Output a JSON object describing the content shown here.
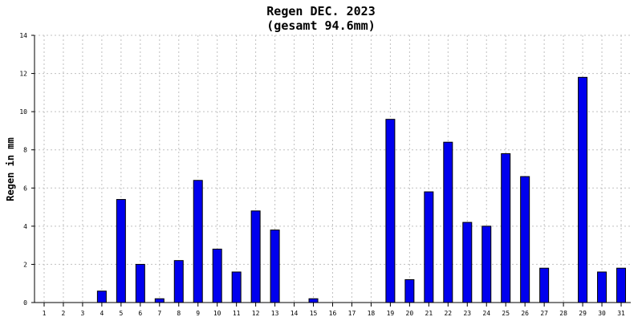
{
  "chart_data": {
    "type": "bar",
    "title": "Regen DEC. 2023",
    "subtitle": "(gesamt 94.6mm)",
    "xlabel": "",
    "ylabel": "Regen in mm",
    "ylim": [
      0,
      14
    ],
    "yticks": [
      0,
      2,
      4,
      6,
      8,
      10,
      12,
      14
    ],
    "grid": true,
    "categories": [
      "1",
      "2",
      "3",
      "4",
      "5",
      "6",
      "7",
      "8",
      "9",
      "10",
      "11",
      "12",
      "13",
      "14",
      "15",
      "16",
      "17",
      "18",
      "19",
      "20",
      "21",
      "22",
      "23",
      "24",
      "25",
      "26",
      "27",
      "28",
      "29",
      "30",
      "31"
    ],
    "values": [
      0,
      0,
      0,
      0.6,
      5.4,
      2.0,
      0.2,
      2.2,
      6.4,
      2.8,
      1.6,
      4.8,
      3.8,
      0,
      0.2,
      0,
      0,
      0,
      9.6,
      1.2,
      5.8,
      8.4,
      4.2,
      4.0,
      7.8,
      6.6,
      1.8,
      0,
      11.8,
      1.6,
      1.8
    ],
    "bar_color": "#0000ee",
    "bar_edge_color": "#000000",
    "grid_color": "#c0c0c0"
  }
}
